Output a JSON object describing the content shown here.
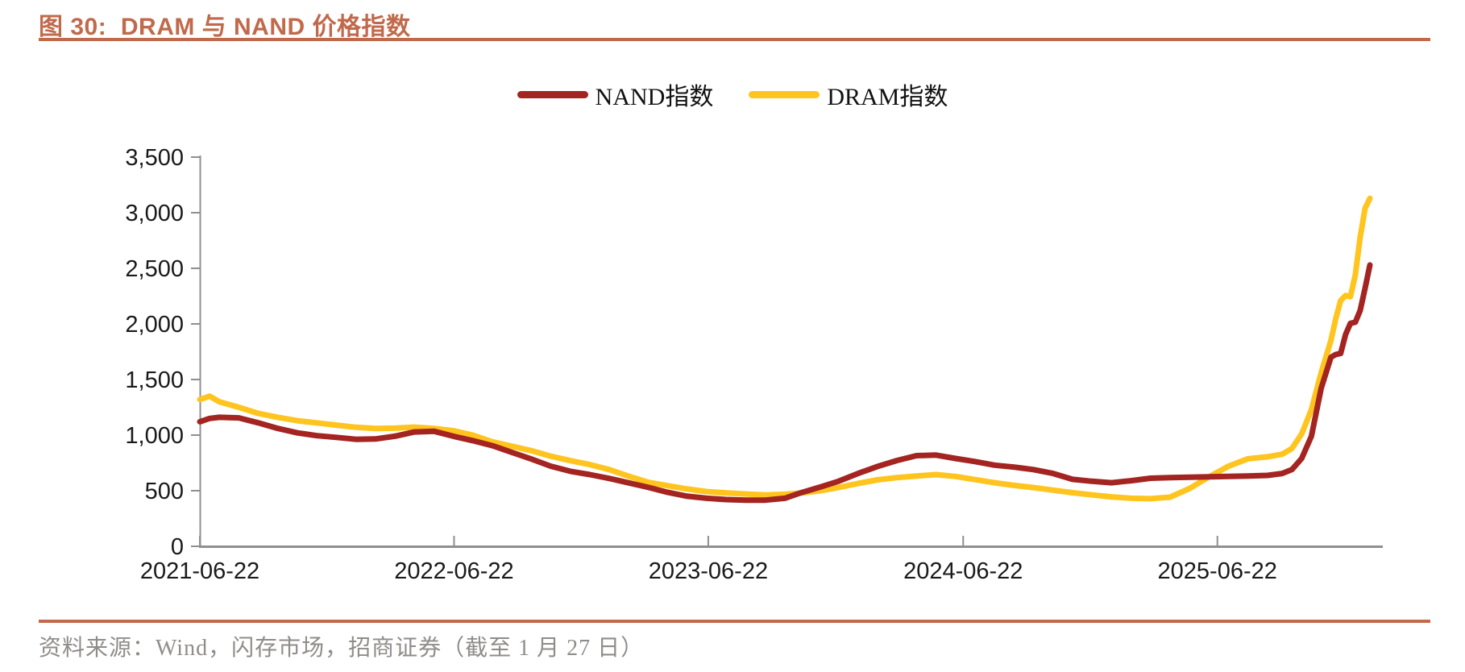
{
  "title": {
    "text": "图 30:  DRAM 与 NAND 价格指数"
  },
  "source": {
    "text": "资料来源：Wind，闪存市场，招商证券（截至 1 月 27 日）"
  },
  "colors": {
    "accent": "#C1694B",
    "axis": "#8F8F8F",
    "tick_text": "#1A1A1A",
    "source_text": "#8F8C89",
    "nand": "#A32420",
    "dram": "#FFC41D"
  },
  "legend": {
    "items": [
      {
        "label": "NAND指数",
        "color": "#A32420"
      },
      {
        "label": "DRAM指数",
        "color": "#FFC41D"
      }
    ]
  },
  "chart_data": {
    "type": "line",
    "title": "DRAM 与 NAND 价格指数",
    "xlabel": "",
    "ylabel": "",
    "ylim": [
      0,
      3500
    ],
    "grid": false,
    "legend_position": "top-center",
    "x_range": [
      "2021-06-22",
      "2026-01-27"
    ],
    "x_tick_labels": [
      "2021-06-22",
      "2022-06-22",
      "2023-06-22",
      "2024-06-22",
      "2025-06-22"
    ],
    "y_ticks": [
      0,
      500,
      1000,
      1500,
      2000,
      2500,
      3000,
      3500
    ],
    "y_tick_labels": [
      "0",
      "500",
      "1,000",
      "1,500",
      "2,000",
      "2,500",
      "3,000",
      "3,500"
    ],
    "x": [
      "2021-06-22",
      "2021-07-06",
      "2021-07-20",
      "2021-08-17",
      "2021-09-14",
      "2021-10-12",
      "2021-11-09",
      "2021-12-07",
      "2022-01-04",
      "2022-02-01",
      "2022-03-01",
      "2022-03-29",
      "2022-04-26",
      "2022-05-24",
      "2022-06-21",
      "2022-07-19",
      "2022-08-16",
      "2022-09-13",
      "2022-10-11",
      "2022-11-08",
      "2022-12-06",
      "2023-01-03",
      "2023-01-31",
      "2023-02-28",
      "2023-03-28",
      "2023-04-25",
      "2023-05-23",
      "2023-06-20",
      "2023-07-18",
      "2023-08-15",
      "2023-09-12",
      "2023-10-10",
      "2023-11-01",
      "2023-11-28",
      "2023-12-26",
      "2024-01-23",
      "2024-02-20",
      "2024-03-19",
      "2024-04-16",
      "2024-05-14",
      "2024-06-11",
      "2024-07-09",
      "2024-08-06",
      "2024-09-03",
      "2024-10-01",
      "2024-10-29",
      "2024-11-26",
      "2024-12-24",
      "2025-01-21",
      "2025-02-18",
      "2025-03-18",
      "2025-04-15",
      "2025-05-13",
      "2025-06-10",
      "2025-07-08",
      "2025-08-05",
      "2025-09-02",
      "2025-09-23",
      "2025-10-07",
      "2025-10-21",
      "2025-11-04",
      "2025-11-18",
      "2025-12-02",
      "2025-12-09",
      "2025-12-16",
      "2025-12-23",
      "2025-12-30",
      "2026-01-06",
      "2026-01-13",
      "2026-01-20",
      "2026-01-27"
    ],
    "series": [
      {
        "name": "NAND指数",
        "color": "#A32420",
        "values": [
          1120,
          1150,
          1160,
          1155,
          1110,
          1060,
          1020,
          995,
          980,
          962,
          965,
          990,
          1028,
          1035,
          990,
          950,
          905,
          845,
          785,
          720,
          675,
          645,
          610,
          570,
          530,
          485,
          450,
          432,
          420,
          415,
          415,
          432,
          480,
          530,
          585,
          655,
          718,
          772,
          815,
          820,
          790,
          762,
          730,
          712,
          690,
          655,
          602,
          585,
          572,
          590,
          612,
          618,
          622,
          625,
          628,
          632,
          638,
          655,
          690,
          790,
          990,
          1420,
          1700,
          1725,
          1735,
          1905,
          2005,
          2015,
          2120,
          2320,
          2530
        ]
      },
      {
        "name": "DRAM指数",
        "color": "#FFC41D",
        "values": [
          1320,
          1350,
          1300,
          1250,
          1195,
          1160,
          1130,
          1110,
          1090,
          1070,
          1060,
          1062,
          1072,
          1060,
          1040,
          1000,
          940,
          900,
          860,
          810,
          770,
          735,
          690,
          630,
          575,
          545,
          515,
          492,
          480,
          470,
          462,
          468,
          478,
          498,
          528,
          565,
          598,
          618,
          632,
          645,
          628,
          600,
          572,
          548,
          528,
          505,
          482,
          462,
          445,
          432,
          428,
          442,
          520,
          625,
          720,
          788,
          805,
          828,
          880,
          1010,
          1230,
          1560,
          1850,
          2050,
          2210,
          2255,
          2245,
          2440,
          2780,
          3040,
          3130
        ]
      }
    ]
  }
}
